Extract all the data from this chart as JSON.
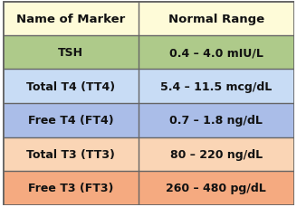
{
  "rows": [
    {
      "marker": "Name of Marker",
      "range": "Normal Range",
      "bg_color": "#FEFBD8"
    },
    {
      "marker": "TSH",
      "range": "0.4 – 4.0 mIU/L",
      "bg_color": "#AECA8A"
    },
    {
      "marker": "Total T4 (TT4)",
      "range": "5.4 – 11.5 mcg/dL",
      "bg_color": "#C8DCF5"
    },
    {
      "marker": "Free T4 (FT4)",
      "range": "0.7 – 1.8 ng/dL",
      "bg_color": "#AABDE8"
    },
    {
      "marker": "Total T3 (TT3)",
      "range": "80 – 220 ng/dL",
      "bg_color": "#FAD5B5"
    },
    {
      "marker": "Free T3 (FT3)",
      "range": "260 – 480 pg/dL",
      "bg_color": "#F5AA80"
    }
  ],
  "header_fontsize": 9.5,
  "cell_fontsize": 9.0,
  "border_color": "#666666",
  "text_color": "#111111",
  "col_split": 0.465,
  "fig_width": 3.28,
  "fig_height": 2.3,
  "dpi": 100
}
